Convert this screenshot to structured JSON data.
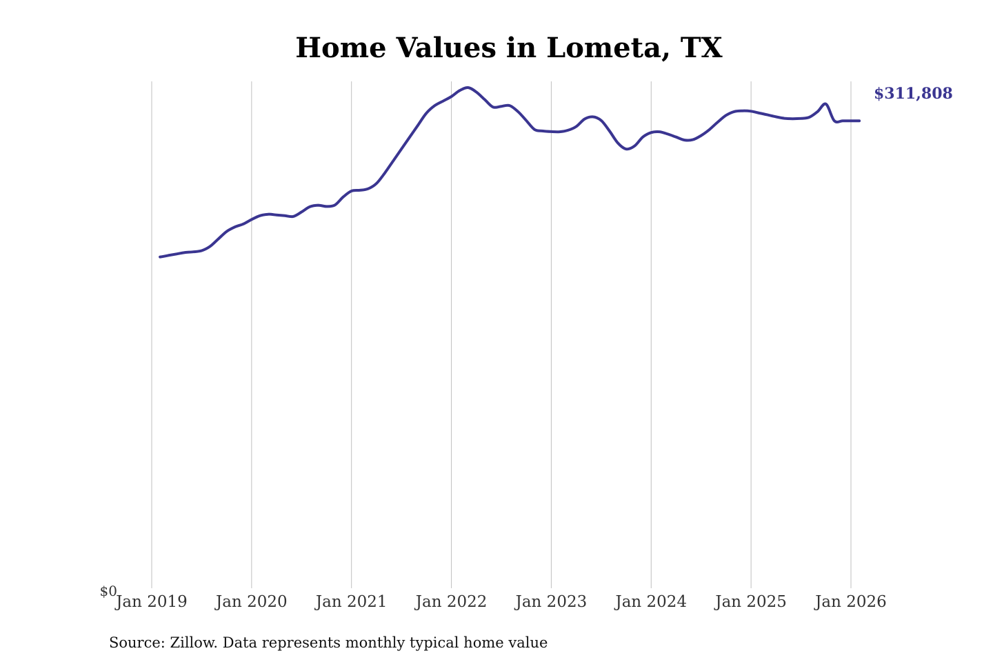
{
  "chart_data": {
    "type": "line",
    "title": "Home Values in Lometa, TX",
    "source": "Source: Zillow. Data represents monthly typical home value",
    "y_tick_label": "$0",
    "ylim": [
      0,
      334000
    ],
    "grid": "vertical",
    "colors": {
      "line": "#3a3591",
      "grid": "#bfbfbf"
    },
    "x_ticks": [
      {
        "date": "2019-01",
        "label": "Jan 2019"
      },
      {
        "date": "2020-01",
        "label": "Jan 2020"
      },
      {
        "date": "2021-01",
        "label": "Jan 2021"
      },
      {
        "date": "2022-01",
        "label": "Jan 2022"
      },
      {
        "date": "2023-01",
        "label": "Jan 2023"
      },
      {
        "date": "2024-01",
        "label": "Jan 2024"
      },
      {
        "date": "2025-01",
        "label": "Jan 2025"
      },
      {
        "date": "2026-01",
        "label": "Jan 2026"
      }
    ],
    "end_label": "$311,808",
    "series": [
      {
        "x": [
          "2019-02",
          "2019-03",
          "2019-04",
          "2019-05",
          "2019-06",
          "2019-07",
          "2019-08",
          "2019-09",
          "2019-10",
          "2019-11",
          "2019-12",
          "2020-01",
          "2020-02",
          "2020-03",
          "2020-04",
          "2020-05",
          "2020-06",
          "2020-07",
          "2020-08",
          "2020-09",
          "2020-10",
          "2020-11",
          "2020-12",
          "2021-01",
          "2021-02",
          "2021-03",
          "2021-04",
          "2021-05",
          "2021-06",
          "2021-07",
          "2021-08",
          "2021-09",
          "2021-10",
          "2021-11",
          "2021-12",
          "2022-01",
          "2022-02",
          "2022-03",
          "2022-04",
          "2022-05",
          "2022-06",
          "2022-07",
          "2022-08",
          "2022-09",
          "2022-10",
          "2022-11",
          "2022-12",
          "2023-01",
          "2023-02",
          "2023-03",
          "2023-04",
          "2023-05",
          "2023-06",
          "2023-07",
          "2023-08",
          "2023-09",
          "2023-10",
          "2023-11",
          "2023-12",
          "2024-01",
          "2024-02",
          "2024-03",
          "2024-04",
          "2024-05",
          "2024-06",
          "2024-07",
          "2024-08",
          "2024-09",
          "2024-10",
          "2024-11",
          "2024-12",
          "2025-01",
          "2025-02",
          "2025-03",
          "2025-04",
          "2025-05",
          "2025-06",
          "2025-07",
          "2025-08",
          "2025-09",
          "2025-10",
          "2025-11",
          "2025-12",
          "2026-01",
          "2026-02"
        ],
        "values": [
          221000,
          222000,
          223000,
          224000,
          224400,
          225200,
          228000,
          233000,
          238000,
          241000,
          243000,
          246000,
          248500,
          249500,
          249000,
          248500,
          248000,
          251000,
          254500,
          255500,
          254700,
          255600,
          261000,
          265000,
          265500,
          266500,
          270000,
          277000,
          285000,
          293000,
          301000,
          309000,
          317000,
          322000,
          325000,
          328000,
          332000,
          334000,
          331000,
          326000,
          321000,
          321500,
          322000,
          318000,
          312000,
          306000,
          305000,
          304600,
          304500,
          305500,
          308000,
          313000,
          314500,
          312000,
          305000,
          297000,
          293000,
          295000,
          301000,
          304000,
          304500,
          303000,
          301000,
          299000,
          299200,
          302000,
          306000,
          311000,
          315500,
          318000,
          318500,
          318200,
          317000,
          315800,
          314500,
          313500,
          313200,
          313400,
          314200,
          318000,
          323000,
          311808,
          311808,
          311808,
          311808
        ]
      }
    ]
  }
}
